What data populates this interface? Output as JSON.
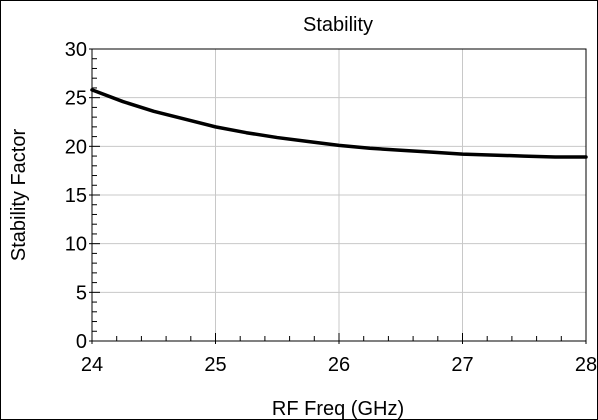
{
  "chart_data": {
    "type": "line",
    "title": "Stability",
    "xlabel": "RF Freq (GHz)",
    "ylabel": "Stability Factor",
    "xlim": [
      24,
      28
    ],
    "ylim": [
      0,
      30
    ],
    "xticks": [
      24,
      25,
      26,
      27,
      28
    ],
    "yticks": [
      0,
      5,
      10,
      15,
      20,
      25,
      30
    ],
    "grid": true,
    "legend": "none",
    "series": [
      {
        "color": "#000000",
        "x": [
          24.0,
          24.25,
          24.5,
          24.75,
          25.0,
          25.25,
          25.5,
          25.75,
          26.0,
          26.25,
          26.5,
          26.75,
          27.0,
          27.25,
          27.5,
          27.75,
          28.0
        ],
        "y": [
          25.8,
          24.6,
          23.6,
          22.8,
          22.0,
          21.4,
          20.9,
          20.5,
          20.1,
          19.8,
          19.6,
          19.4,
          19.2,
          19.1,
          19.0,
          18.9,
          18.9
        ]
      }
    ]
  }
}
